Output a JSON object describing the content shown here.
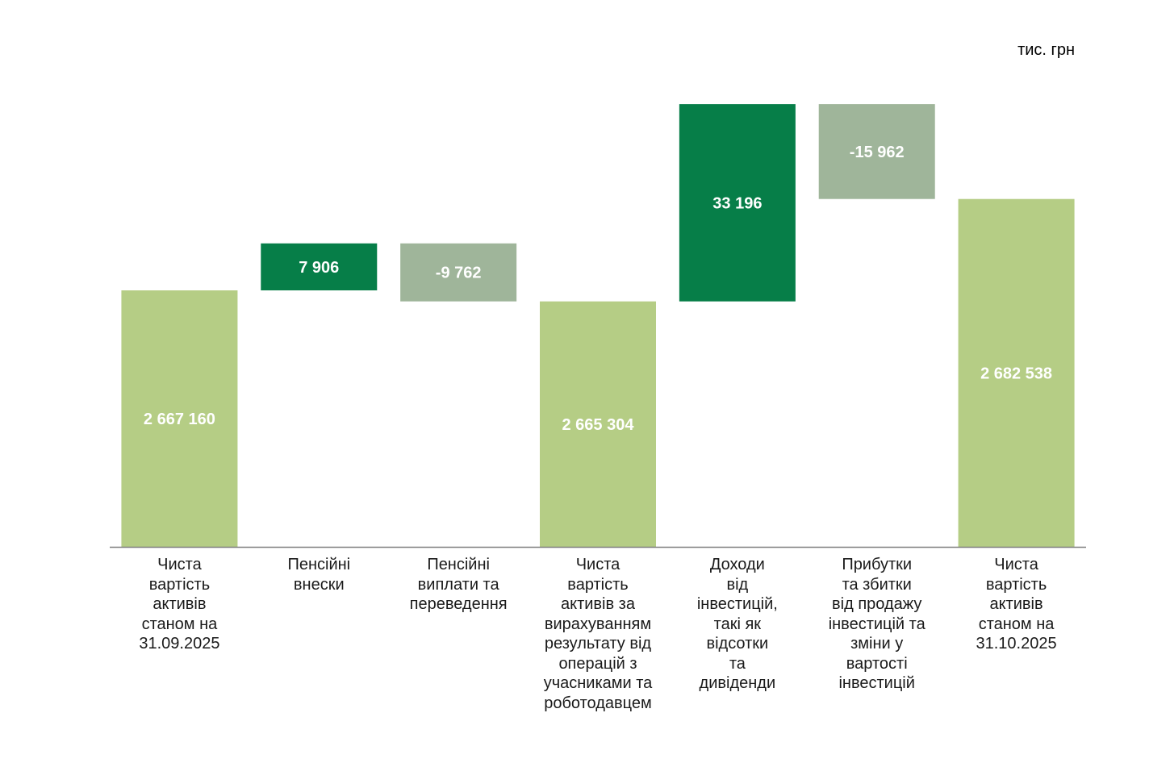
{
  "unit_label": "тис. грн",
  "colors": {
    "total": "#b5cd85",
    "increase": "#067e48",
    "decrease": "#9fb59a",
    "value_text": "#ffffff",
    "axis": "#7f7f7f"
  },
  "chart_data": {
    "type": "waterfall",
    "xlabel": "",
    "ylabel": "",
    "grid": false,
    "legend": "none",
    "categories": [
      "Чиста\nвартість\nактивів\nстаном на\n31.09.2025",
      "Пенсійні\nвнески",
      "Пенсійні\nвиплати та\nпереведення",
      "Чиста\nвартість\nактивів за\nвирахуванням\nрезультату від\nоперацій з\nучасниками та\nроботодавцем",
      "Доходи\nвід\nінвестицій,\nтакі як\nвідсотки\nта\nдивіденди",
      "Прибутки\nта збитки\nвід продажу\nінвестицій та\nзміни у\nвартості\nінвестицій",
      "Чиста\nвартість\nактивів\nстаном на\n31.10.2025"
    ],
    "values": [
      2667160,
      7906,
      -9762,
      2665304,
      33196,
      -15962,
      2682538
    ],
    "labels": [
      "2 667 160",
      "7 906",
      "-9 762",
      "2 665 304",
      "33 196",
      "-15 962",
      "2 682 538"
    ],
    "kinds": [
      "total",
      "increase",
      "decrease",
      "total",
      "increase",
      "decrease",
      "total"
    ],
    "ylim": [
      2624000,
      2692000
    ]
  }
}
